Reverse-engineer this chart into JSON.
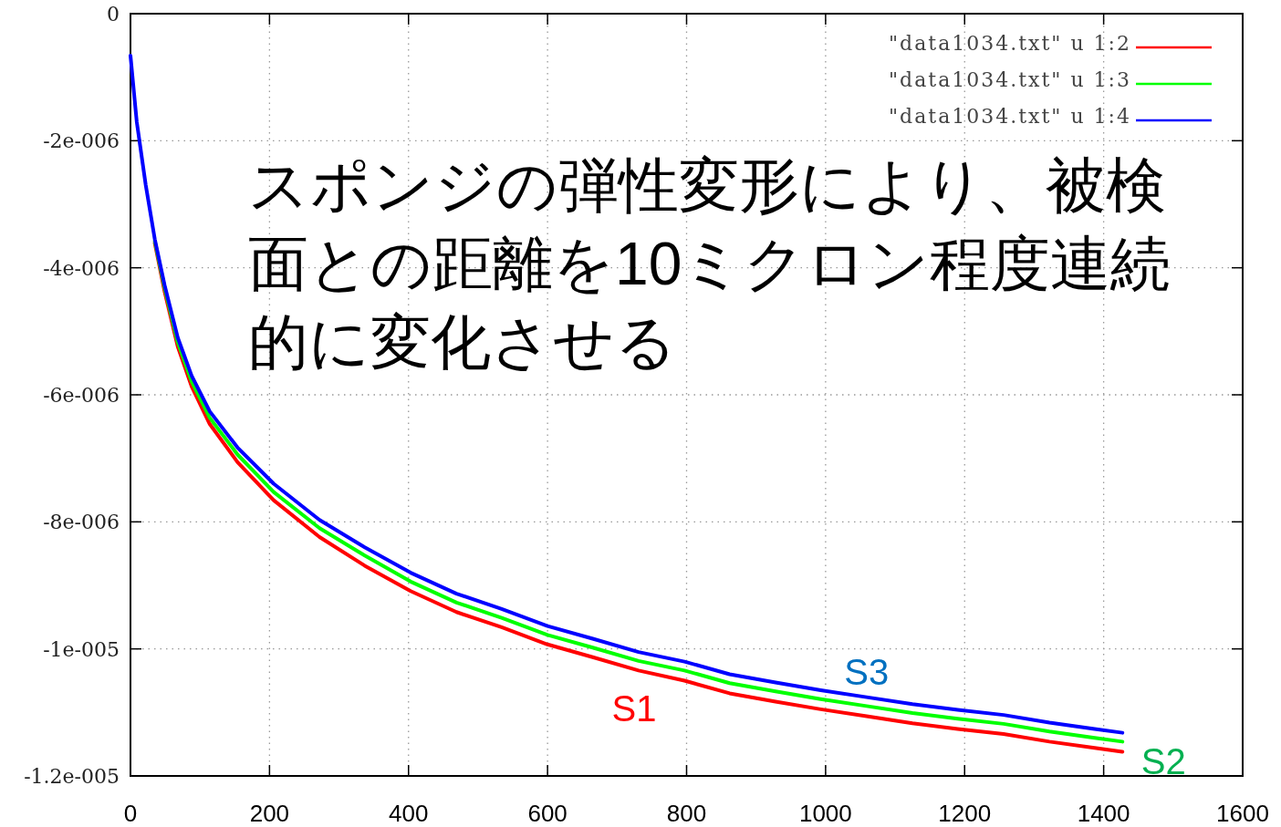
{
  "chart_data": {
    "type": "line",
    "annotations": [
      "スポンジの弾性変形により、被検面との距離を10ミクロン程度連続的に変化させる",
      "S1",
      "S2",
      "S3"
    ],
    "x": [
      0,
      9,
      22,
      35,
      49,
      68,
      88,
      114,
      154,
      206,
      272,
      337,
      403,
      469,
      534,
      600,
      665,
      731,
      797,
      862,
      928,
      993,
      1059,
      1125,
      1190,
      1256,
      1322,
      1387,
      1427
    ],
    "series": [
      {
        "name": "\"data1034.txt\" u 1:2",
        "color": "#ff0000",
        "values": [
          null,
          null,
          null,
          -3.61e-06,
          -4.37e-06,
          -5.24e-06,
          -5.87e-06,
          -6.46e-06,
          -7.06e-06,
          -7.66e-06,
          -8.24e-06,
          -8.69e-06,
          -9.09e-06,
          -9.42e-06,
          -9.66e-06,
          -9.93e-06,
          -1.013e-05,
          -1.034e-05,
          -1.05e-05,
          -1.07e-05,
          -1.083e-05,
          -1.095e-05,
          -1.106e-05,
          -1.117e-05,
          -1.126e-05,
          -1.134e-05,
          -1.146e-05,
          -1.156e-05,
          -1.162e-05
        ]
      },
      {
        "name": "\"data1034.txt\" u 1:3",
        "color": "#00ff00",
        "values": [
          null,
          null,
          null,
          -3.58e-06,
          -4.31e-06,
          -5.17e-06,
          -5.79e-06,
          -6.36e-06,
          -6.94e-06,
          -7.53e-06,
          -8.1e-06,
          -8.53e-06,
          -8.94e-06,
          -9.27e-06,
          -9.51e-06,
          -9.78e-06,
          -9.98e-06,
          -1.019e-05,
          -1.034e-05,
          -1.054e-05,
          -1.067e-05,
          -1.079e-05,
          -1.09e-05,
          -1.101e-05,
          -1.11e-05,
          -1.118e-05,
          -1.13e-05,
          -1.14e-05,
          -1.146e-05
        ]
      },
      {
        "name": "\"data1034.txt\" u 1:4",
        "color": "#0000ff",
        "values": [
          -6.6e-07,
          -1.7e-06,
          -2.7e-06,
          -3.55e-06,
          -4.27e-06,
          -5.1e-06,
          -5.7e-06,
          -6.26e-06,
          -6.83e-06,
          -7.4e-06,
          -7.97e-06,
          -8.4e-06,
          -8.8e-06,
          -9.13e-06,
          -9.37e-06,
          -9.64e-06,
          -9.84e-06,
          -1.005e-05,
          -1.02e-05,
          -1.04e-05,
          -1.053e-05,
          -1.065e-05,
          -1.076e-05,
          -1.087e-05,
          -1.096e-05,
          -1.104e-05,
          -1.116e-05,
          -1.126e-05,
          -1.132e-05
        ]
      }
    ],
    "xlim": [
      0,
      1600
    ],
    "xticks": [
      0,
      200,
      400,
      600,
      800,
      1000,
      1200,
      1400,
      1600
    ],
    "ylim": [
      -1.2e-05,
      0
    ],
    "yticks": [
      0,
      {
        "value": -2e-06,
        "label": "-2e-006"
      },
      {
        "value": -4e-06,
        "label": "-4e-006"
      },
      {
        "value": -6e-06,
        "label": "-6e-006"
      },
      {
        "value": -8e-06,
        "label": "-8e-006"
      },
      {
        "value": -1e-05,
        "label": "-1e-005"
      },
      {
        "value": -1.2e-05,
        "label": "-1.2e-005"
      }
    ],
    "grid": true,
    "legend": "top right",
    "marker": "none",
    "line_style": "solid"
  }
}
